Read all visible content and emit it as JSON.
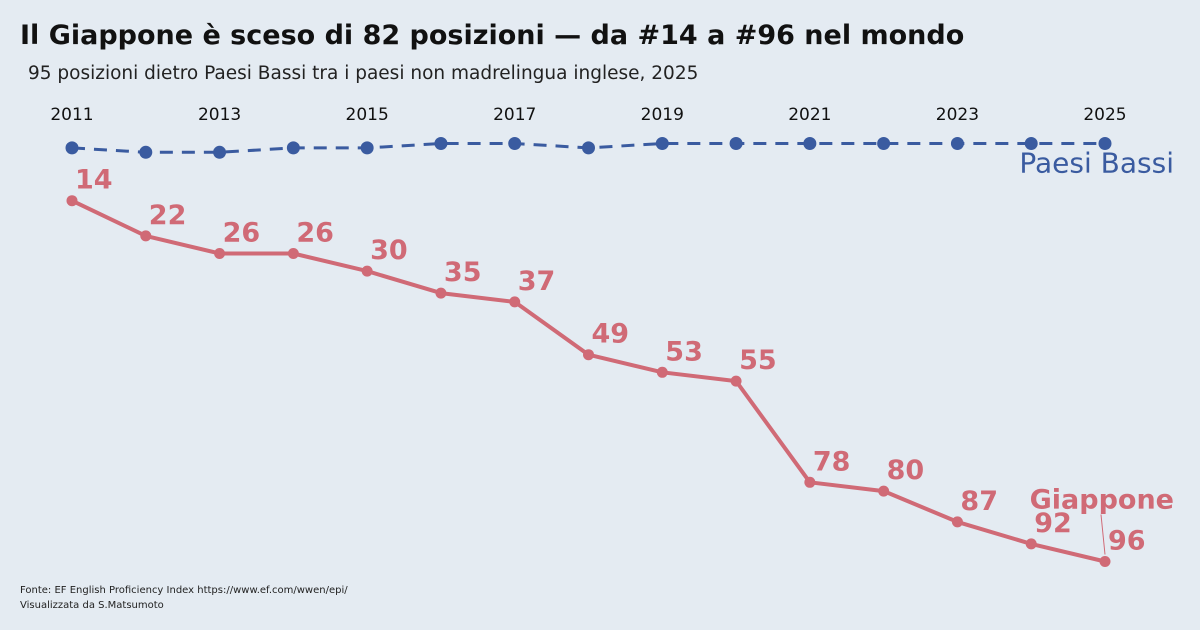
{
  "header": {
    "title": "Il Giappone è sceso di 82 posizioni — da #14 a #96 nel mondo",
    "subtitle": "95 posizioni dietro Paesi Bassi tra i paesi non madrelingua inglese, 2025"
  },
  "footer": {
    "source": "Fonte: EF English Proficiency Index https://www.ef.com/wwen/epi/",
    "credit": "Visualizzata da S.Matsumoto"
  },
  "colors": {
    "background": "#e4ebf2",
    "japan": "#d06a76",
    "netherlands": "#3a5ba0"
  },
  "chart_data": {
    "type": "line",
    "x": [
      2011,
      2012,
      2013,
      2014,
      2015,
      2016,
      2017,
      2018,
      2019,
      2020,
      2021,
      2022,
      2023,
      2024,
      2025
    ],
    "x_tick_labels": [
      "2011",
      "2013",
      "2015",
      "2017",
      "2019",
      "2021",
      "2023",
      "2025"
    ],
    "xlabel": "",
    "ylabel": "",
    "y_reversed": true,
    "y_axis_shown": false,
    "grid": false,
    "series": [
      {
        "name": "Paesi Bassi",
        "line_style": "dashed",
        "values": [
          2,
          3,
          3,
          2,
          2,
          1,
          1,
          2,
          1,
          1,
          1,
          1,
          1,
          1,
          1
        ],
        "data_labels_shown": false
      },
      {
        "name": "Giappone",
        "line_style": "solid",
        "values": [
          14,
          22,
          26,
          26,
          30,
          35,
          37,
          49,
          53,
          55,
          78,
          80,
          87,
          92,
          96
        ],
        "data_labels_shown": true
      }
    ]
  }
}
